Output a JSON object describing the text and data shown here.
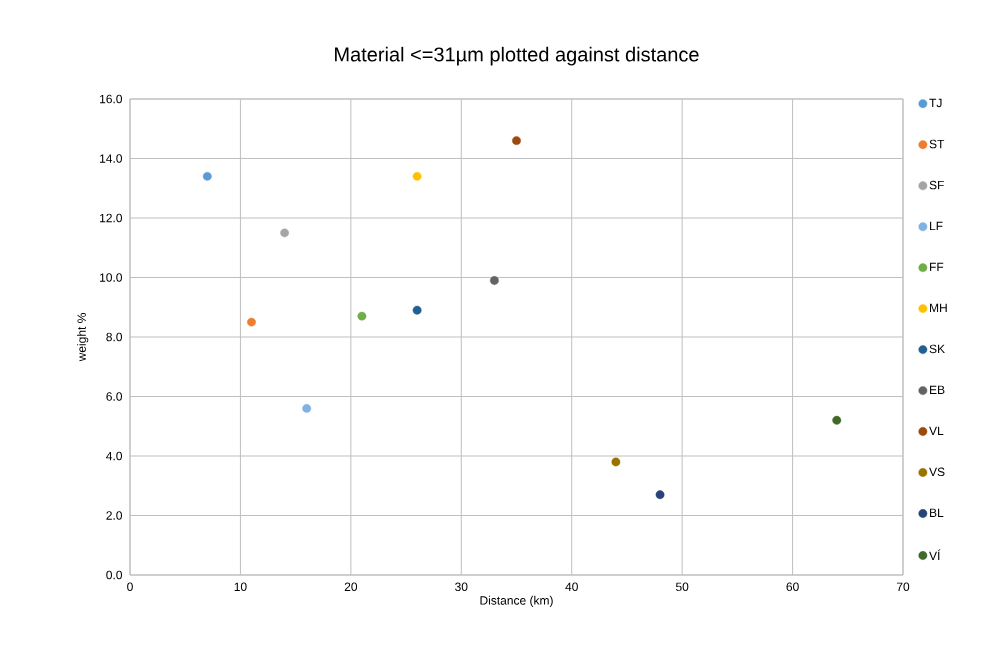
{
  "chart_data": {
    "type": "scatter",
    "title": "Material <=31µm plotted against distance",
    "xlabel": "Distance (km)",
    "ylabel": "weight %",
    "series": [
      {
        "name": "TJ",
        "color": "#5b9bd5",
        "x": [
          7
        ],
        "values": [
          13.4
        ]
      },
      {
        "name": "ST",
        "color": "#ed7d31",
        "x": [
          11
        ],
        "values": [
          8.5
        ]
      },
      {
        "name": "SF",
        "color": "#a5a5a5",
        "x": [
          14
        ],
        "values": [
          11.5
        ]
      },
      {
        "name": "LF",
        "color": "#7fb2e2",
        "x": [
          16
        ],
        "values": [
          5.6
        ]
      },
      {
        "name": "FF",
        "color": "#70ad47",
        "x": [
          21
        ],
        "values": [
          8.7
        ]
      },
      {
        "name": "MH",
        "color": "#ffc000",
        "x": [
          26
        ],
        "values": [
          13.4
        ]
      },
      {
        "name": "SK",
        "color": "#255e91",
        "x": [
          26
        ],
        "values": [
          8.9
        ]
      },
      {
        "name": "EB",
        "color": "#636363",
        "x": [
          33
        ],
        "values": [
          9.9
        ]
      },
      {
        "name": "VL",
        "color": "#9e480e",
        "x": [
          35
        ],
        "values": [
          14.6
        ]
      },
      {
        "name": "VS",
        "color": "#997300",
        "x": [
          44
        ],
        "values": [
          3.8
        ]
      },
      {
        "name": "BL",
        "color": "#264478",
        "x": [
          48
        ],
        "values": [
          2.7
        ]
      },
      {
        "name": "VÍ",
        "color": "#43682b",
        "x": [
          64
        ],
        "values": [
          5.2
        ]
      }
    ],
    "xlim": [
      0,
      70
    ],
    "xticks": [
      0,
      10,
      20,
      30,
      40,
      50,
      60,
      70
    ],
    "ylim": [
      0,
      16
    ],
    "yticks": [
      {
        "value": 0,
        "label": "0.0"
      },
      {
        "value": 2,
        "label": "2.0"
      },
      {
        "value": 4,
        "label": "4.0"
      },
      {
        "value": 6,
        "label": "6.0"
      },
      {
        "value": 8,
        "label": "8.0"
      },
      {
        "value": 10,
        "label": "10.0"
      },
      {
        "value": 12,
        "label": "12.0"
      },
      {
        "value": 14,
        "label": "14.0"
      },
      {
        "value": 16,
        "label": "16.0"
      }
    ],
    "grid": true,
    "legend": "right"
  }
}
